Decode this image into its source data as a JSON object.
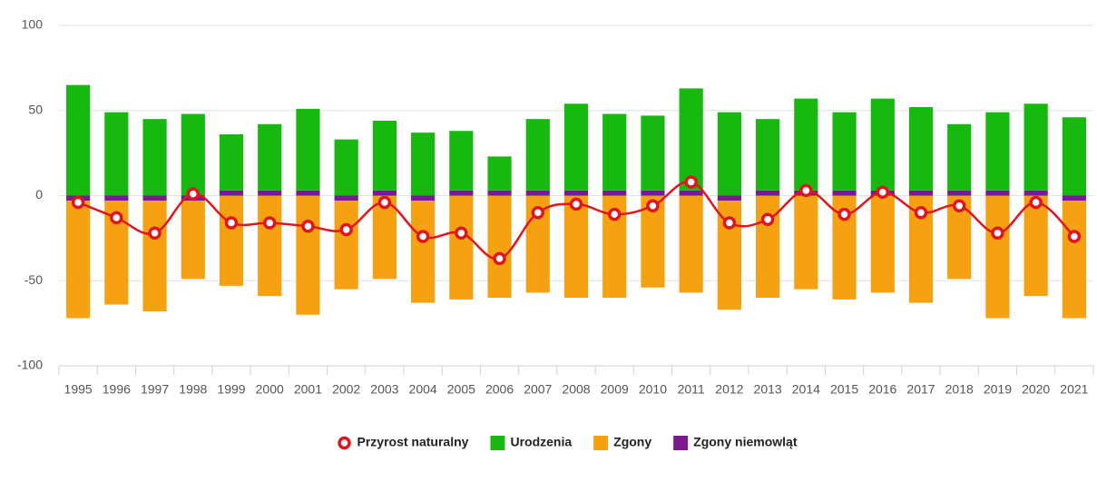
{
  "chart_data": {
    "type": "bar",
    "categories": [
      "1995",
      "1996",
      "1997",
      "1998",
      "1999",
      "2000",
      "2001",
      "2002",
      "2003",
      "2004",
      "2005",
      "2006",
      "2007",
      "2008",
      "2009",
      "2010",
      "2011",
      "2012",
      "2013",
      "2014",
      "2015",
      "2016",
      "2017",
      "2018",
      "2019",
      "2020",
      "2021"
    ],
    "series": [
      {
        "name": "Przyrost naturalny",
        "type": "line",
        "color": "#e0161c",
        "values": [
          -4,
          -13,
          -22,
          1,
          -16,
          -16,
          -18,
          -20,
          -4,
          -24,
          -22,
          -37,
          -10,
          -5,
          -11,
          -6,
          8,
          -16,
          -14,
          3,
          -11,
          2,
          -10,
          -6,
          -22,
          -4,
          -24
        ]
      },
      {
        "name": "Urodzenia",
        "type": "bar",
        "color": "#17b80f",
        "values": [
          65,
          49,
          45,
          48,
          33,
          39,
          48,
          33,
          41,
          37,
          35,
          20,
          42,
          51,
          45,
          44,
          60,
          49,
          42,
          54,
          46,
          54,
          49,
          39,
          46,
          51,
          46
        ]
      },
      {
        "name": "Zgony",
        "type": "bar",
        "color": "#f5a112",
        "values": [
          -69,
          -61,
          -65,
          -46,
          -53,
          -59,
          -70,
          -52,
          -49,
          -60,
          -61,
          -60,
          -57,
          -60,
          -60,
          -54,
          -57,
          -64,
          -60,
          -55,
          -61,
          -57,
          -63,
          -49,
          -72,
          -59,
          -69
        ]
      },
      {
        "name": "Zgony niemowląt",
        "type": "bar",
        "color": "#7a1a8c",
        "values": [
          -3,
          -3,
          -3,
          -3,
          3,
          3,
          3,
          -3,
          3,
          -3,
          3,
          3,
          3,
          3,
          3,
          3,
          3,
          -3,
          3,
          3,
          3,
          3,
          3,
          3,
          3,
          3,
          -3
        ]
      }
    ],
    "stacked": true,
    "ylim": [
      -100,
      100
    ],
    "yticks": [
      -100,
      -50,
      0,
      50,
      100
    ],
    "grid": true,
    "legend": "bottom"
  }
}
